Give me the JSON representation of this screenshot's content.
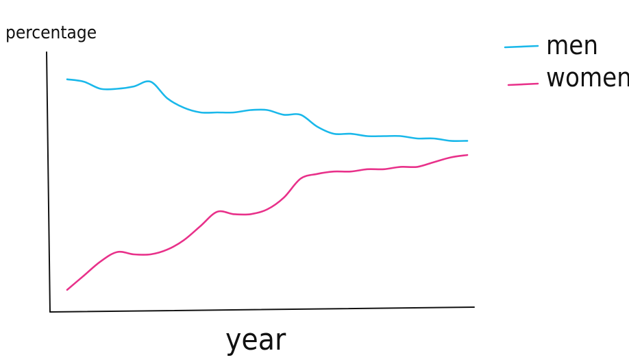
{
  "chart_data": {
    "type": "line",
    "xlabel": "year",
    "ylabel": "percentage",
    "grid": false,
    "legend_position": "top-right",
    "x": [
      0,
      1,
      2,
      3,
      4,
      5,
      6,
      7,
      8,
      9,
      10,
      11,
      12,
      13,
      14,
      15,
      16,
      17,
      18,
      19,
      20,
      21,
      22,
      23,
      24
    ],
    "xlim": [
      0,
      24
    ],
    "ylim": [
      0,
      100
    ],
    "series": [
      {
        "name": "men",
        "color": "#1ab8ea",
        "values": [
          94,
          93,
          90,
          90,
          91,
          93,
          86,
          82,
          80,
          80,
          80,
          81,
          81,
          79,
          79,
          74,
          71,
          71,
          70,
          70,
          70,
          69,
          69,
          68,
          68
        ]
      },
      {
        "name": "women",
        "color": "#e8318a",
        "values": [
          5,
          11,
          17,
          21,
          20,
          20,
          22,
          26,
          32,
          38,
          37,
          37,
          39,
          44,
          52,
          54,
          55,
          55,
          56,
          56,
          57,
          57,
          59,
          61,
          62
        ]
      }
    ]
  }
}
